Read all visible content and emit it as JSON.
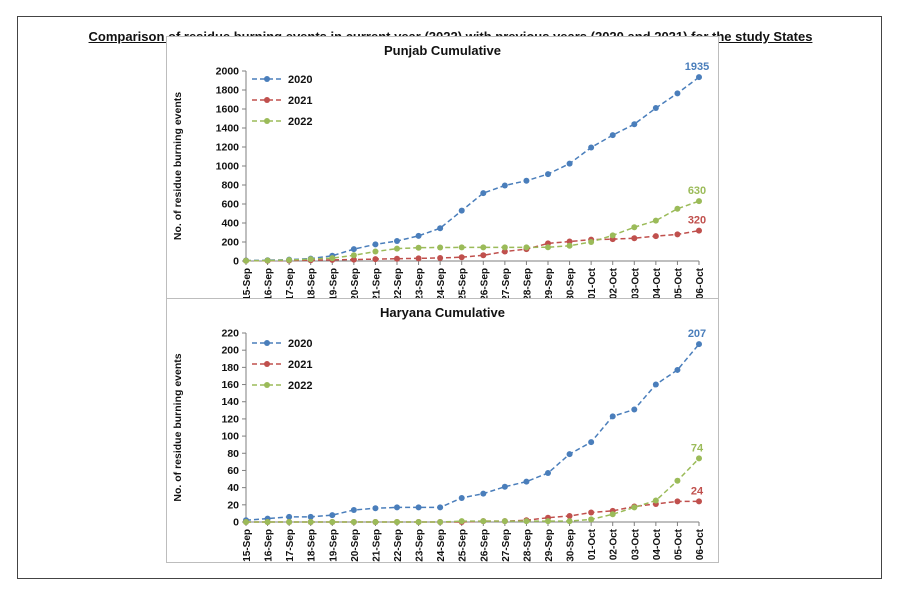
{
  "page": {
    "title": "Comparison of residue burning events in current year (2022) with previous years (2020 and 2021) for the study States"
  },
  "colors": {
    "2020": "#4a7ebb",
    "2021": "#c0504d",
    "2022": "#9bbb59"
  },
  "chart_data": [
    {
      "type": "line",
      "id": "punjab",
      "title": "Punjab Cumulative",
      "xlabel": "",
      "ylabel": "No. of residue burning events",
      "ylim": [
        0,
        2000
      ],
      "yticks": [
        0,
        200,
        400,
        600,
        800,
        1000,
        1200,
        1400,
        1600,
        1800,
        2000
      ],
      "categories": [
        "15-Sep",
        "16-Sep",
        "17-Sep",
        "18-Sep",
        "19-Sep",
        "20-Sep",
        "21-Sep",
        "22-Sep",
        "23-Sep",
        "24-Sep",
        "25-Sep",
        "26-Sep",
        "27-Sep",
        "28-Sep",
        "29-Sep",
        "30-Sep",
        "01-Oct",
        "02-Oct",
        "03-Oct",
        "04-Oct",
        "05-Oct",
        "06-Oct"
      ],
      "legend_position": "top-left",
      "series": [
        {
          "name": "2020",
          "values": [
            5,
            8,
            14,
            25,
            55,
            125,
            175,
            210,
            265,
            345,
            530,
            715,
            795,
            845,
            915,
            1025,
            1195,
            1325,
            1440,
            1610,
            1765,
            1935
          ],
          "end_label": "1935"
        },
        {
          "name": "2021",
          "values": [
            2,
            3,
            5,
            8,
            12,
            15,
            20,
            24,
            28,
            32,
            40,
            60,
            100,
            125,
            185,
            205,
            225,
            230,
            240,
            262,
            280,
            320
          ],
          "end_label": "320"
        },
        {
          "name": "2022",
          "values": [
            3,
            5,
            10,
            20,
            30,
            60,
            100,
            130,
            140,
            142,
            143,
            143,
            143,
            143,
            145,
            160,
            200,
            270,
            355,
            425,
            550,
            630
          ],
          "end_label": "630"
        }
      ]
    },
    {
      "type": "line",
      "id": "haryana",
      "title": "Haryana Cumulative",
      "xlabel": "",
      "ylabel": "No. of residue burning events",
      "ylim": [
        0,
        220
      ],
      "yticks": [
        0,
        20,
        40,
        60,
        80,
        100,
        120,
        140,
        160,
        180,
        200,
        220
      ],
      "categories": [
        "15-Sep",
        "16-Sep",
        "17-Sep",
        "18-Sep",
        "19-Sep",
        "20-Sep",
        "21-Sep",
        "22-Sep",
        "23-Sep",
        "24-Sep",
        "25-Sep",
        "26-Sep",
        "27-Sep",
        "28-Sep",
        "29-Sep",
        "30-Sep",
        "01-Oct",
        "02-Oct",
        "03-Oct",
        "04-Oct",
        "05-Oct",
        "06-Oct"
      ],
      "legend_position": "top-left",
      "series": [
        {
          "name": "2020",
          "values": [
            2,
            4,
            6,
            6,
            8,
            14,
            16,
            17,
            17,
            17,
            28,
            33,
            41,
            47,
            57,
            79,
            93,
            123,
            131,
            160,
            177,
            207
          ],
          "end_label": "207"
        },
        {
          "name": "2021",
          "values": [
            0,
            0,
            0,
            0,
            0,
            0,
            0,
            0,
            0,
            0,
            0,
            1,
            1,
            2,
            5,
            7,
            11,
            13,
            18,
            21,
            24,
            24
          ],
          "end_label": "24"
        },
        {
          "name": "2022",
          "values": [
            0,
            0,
            0,
            0,
            0,
            0,
            0,
            0,
            0,
            0,
            1,
            1,
            1,
            1,
            1,
            1,
            3,
            9,
            17,
            25,
            48,
            74
          ],
          "end_label": "74"
        }
      ]
    }
  ]
}
